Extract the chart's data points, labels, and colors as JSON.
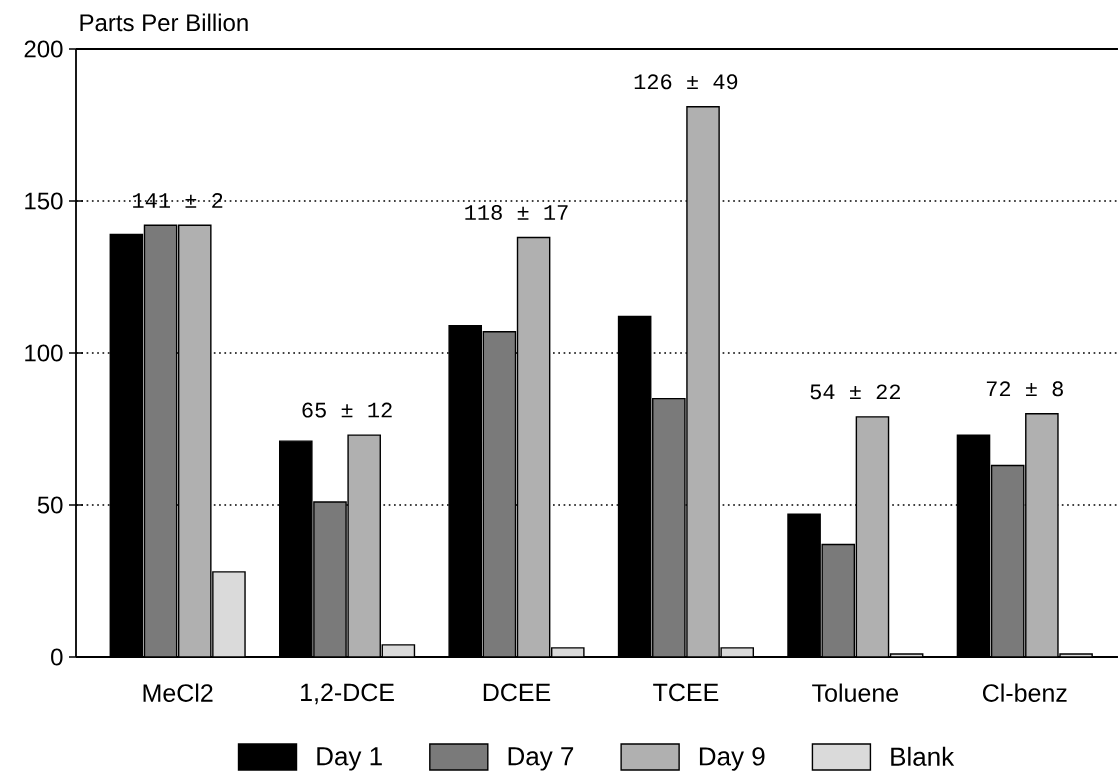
{
  "chart_data": {
    "type": "bar",
    "ylabel": "Parts Per Billion",
    "categories": [
      "MeCl2",
      "1,2-DCE",
      "DCEE",
      "TCEE",
      "Toluene",
      "Cl-benz"
    ],
    "series": [
      {
        "name": "Day 1",
        "color": "#000000",
        "values": [
          139,
          71,
          109,
          112,
          47,
          73
        ]
      },
      {
        "name": "Day 7",
        "color": "#7a7a7a",
        "values": [
          142,
          51,
          107,
          85,
          37,
          63
        ]
      },
      {
        "name": "Day 9",
        "color": "#b0b0b0",
        "values": [
          142,
          73,
          138,
          181,
          79,
          80
        ]
      },
      {
        "name": "Blank",
        "color": "#dadada",
        "values": [
          28,
          4,
          3,
          3,
          1,
          1
        ]
      }
    ],
    "ylim": [
      0,
      200
    ],
    "yticks": [
      0,
      50,
      100,
      150,
      200
    ],
    "grid": "y",
    "legend": "bottom",
    "annotations": [
      "141 ± 2",
      "65 ± 12",
      "118 ± 17",
      "126 ± 49",
      "54 ± 22",
      "72 ± 8"
    ]
  }
}
